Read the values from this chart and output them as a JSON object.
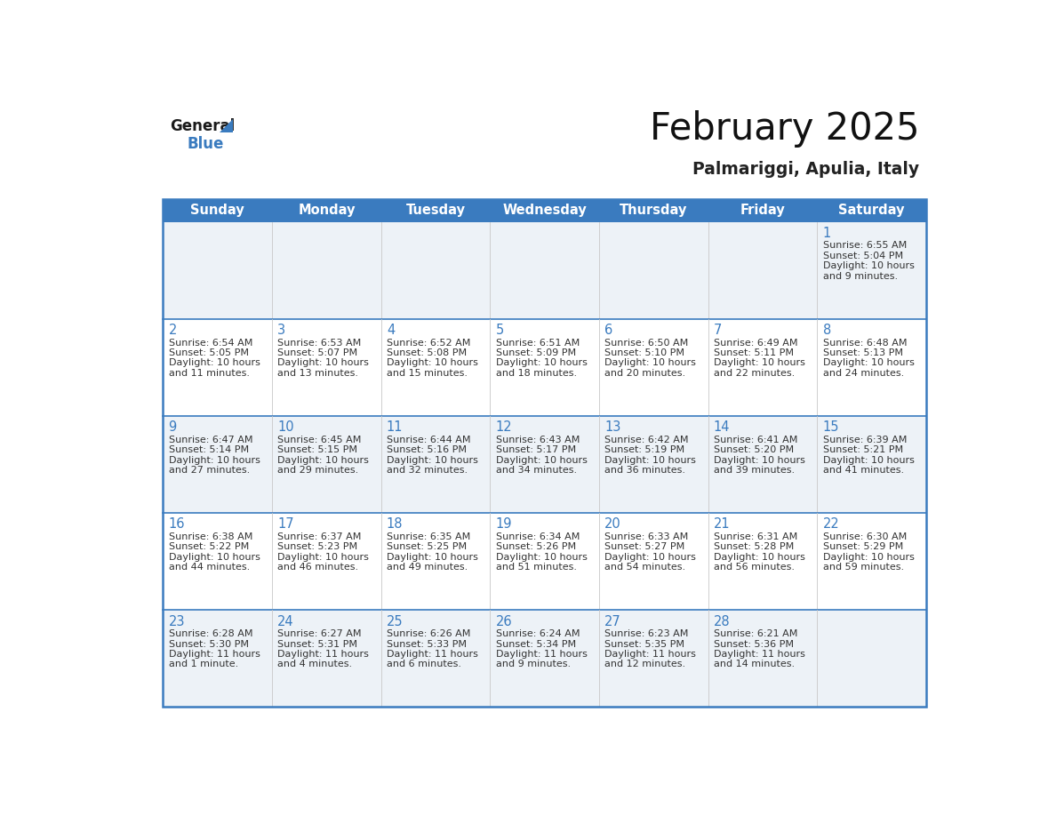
{
  "title": "February 2025",
  "subtitle": "Palmariggi, Apulia, Italy",
  "days_of_week": [
    "Sunday",
    "Monday",
    "Tuesday",
    "Wednesday",
    "Thursday",
    "Friday",
    "Saturday"
  ],
  "header_bg": "#3a7bbf",
  "header_text": "#ffffff",
  "cell_bg_odd": "#edf2f7",
  "cell_bg_even": "#ffffff",
  "border_color": "#3a7bbf",
  "row_line_color": "#3a7bbf",
  "col_line_color": "#cccccc",
  "day_number_color": "#3a7bbf",
  "text_color": "#333333",
  "logo_blue_color": "#3a7bbf",
  "calendar_data": [
    [
      null,
      null,
      null,
      null,
      null,
      null,
      {
        "day": 1,
        "sunrise": "6:55 AM",
        "sunset": "5:04 PM",
        "daylight": "10 hours and 9 minutes."
      }
    ],
    [
      {
        "day": 2,
        "sunrise": "6:54 AM",
        "sunset": "5:05 PM",
        "daylight": "10 hours and 11 minutes."
      },
      {
        "day": 3,
        "sunrise": "6:53 AM",
        "sunset": "5:07 PM",
        "daylight": "10 hours and 13 minutes."
      },
      {
        "day": 4,
        "sunrise": "6:52 AM",
        "sunset": "5:08 PM",
        "daylight": "10 hours and 15 minutes."
      },
      {
        "day": 5,
        "sunrise": "6:51 AM",
        "sunset": "5:09 PM",
        "daylight": "10 hours and 18 minutes."
      },
      {
        "day": 6,
        "sunrise": "6:50 AM",
        "sunset": "5:10 PM",
        "daylight": "10 hours and 20 minutes."
      },
      {
        "day": 7,
        "sunrise": "6:49 AM",
        "sunset": "5:11 PM",
        "daylight": "10 hours and 22 minutes."
      },
      {
        "day": 8,
        "sunrise": "6:48 AM",
        "sunset": "5:13 PM",
        "daylight": "10 hours and 24 minutes."
      }
    ],
    [
      {
        "day": 9,
        "sunrise": "6:47 AM",
        "sunset": "5:14 PM",
        "daylight": "10 hours and 27 minutes."
      },
      {
        "day": 10,
        "sunrise": "6:45 AM",
        "sunset": "5:15 PM",
        "daylight": "10 hours and 29 minutes."
      },
      {
        "day": 11,
        "sunrise": "6:44 AM",
        "sunset": "5:16 PM",
        "daylight": "10 hours and 32 minutes."
      },
      {
        "day": 12,
        "sunrise": "6:43 AM",
        "sunset": "5:17 PM",
        "daylight": "10 hours and 34 minutes."
      },
      {
        "day": 13,
        "sunrise": "6:42 AM",
        "sunset": "5:19 PM",
        "daylight": "10 hours and 36 minutes."
      },
      {
        "day": 14,
        "sunrise": "6:41 AM",
        "sunset": "5:20 PM",
        "daylight": "10 hours and 39 minutes."
      },
      {
        "day": 15,
        "sunrise": "6:39 AM",
        "sunset": "5:21 PM",
        "daylight": "10 hours and 41 minutes."
      }
    ],
    [
      {
        "day": 16,
        "sunrise": "6:38 AM",
        "sunset": "5:22 PM",
        "daylight": "10 hours and 44 minutes."
      },
      {
        "day": 17,
        "sunrise": "6:37 AM",
        "sunset": "5:23 PM",
        "daylight": "10 hours and 46 minutes."
      },
      {
        "day": 18,
        "sunrise": "6:35 AM",
        "sunset": "5:25 PM",
        "daylight": "10 hours and 49 minutes."
      },
      {
        "day": 19,
        "sunrise": "6:34 AM",
        "sunset": "5:26 PM",
        "daylight": "10 hours and 51 minutes."
      },
      {
        "day": 20,
        "sunrise": "6:33 AM",
        "sunset": "5:27 PM",
        "daylight": "10 hours and 54 minutes."
      },
      {
        "day": 21,
        "sunrise": "6:31 AM",
        "sunset": "5:28 PM",
        "daylight": "10 hours and 56 minutes."
      },
      {
        "day": 22,
        "sunrise": "6:30 AM",
        "sunset": "5:29 PM",
        "daylight": "10 hours and 59 minutes."
      }
    ],
    [
      {
        "day": 23,
        "sunrise": "6:28 AM",
        "sunset": "5:30 PM",
        "daylight": "11 hours and 1 minute."
      },
      {
        "day": 24,
        "sunrise": "6:27 AM",
        "sunset": "5:31 PM",
        "daylight": "11 hours and 4 minutes."
      },
      {
        "day": 25,
        "sunrise": "6:26 AM",
        "sunset": "5:33 PM",
        "daylight": "11 hours and 6 minutes."
      },
      {
        "day": 26,
        "sunrise": "6:24 AM",
        "sunset": "5:34 PM",
        "daylight": "11 hours and 9 minutes."
      },
      {
        "day": 27,
        "sunrise": "6:23 AM",
        "sunset": "5:35 PM",
        "daylight": "11 hours and 12 minutes."
      },
      {
        "day": 28,
        "sunrise": "6:21 AM",
        "sunset": "5:36 PM",
        "daylight": "11 hours and 14 minutes."
      },
      null
    ]
  ]
}
